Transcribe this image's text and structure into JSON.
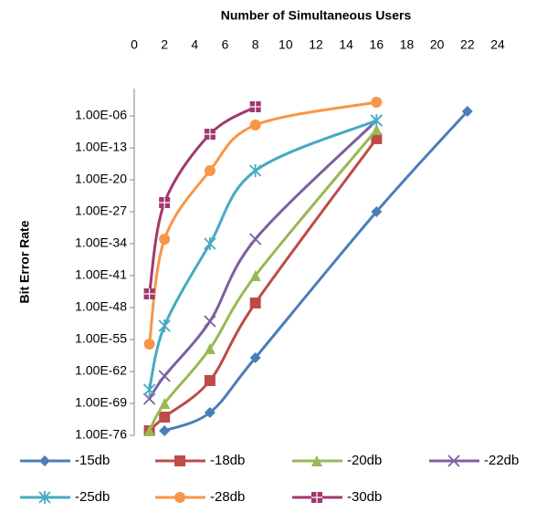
{
  "chart_data": {
    "type": "line",
    "xlabel": "Number of Simultaneous Users",
    "ylabel": "Bit Error Rate",
    "xlim": [
      0,
      24
    ],
    "xticks": [
      0,
      2,
      4,
      6,
      8,
      10,
      12,
      14,
      16,
      18,
      20,
      22,
      24
    ],
    "ylim": [
      1e-76,
      1
    ],
    "log_y": true,
    "yticks": [
      {
        "value": 1e-76,
        "label": "1.00E-76"
      },
      {
        "value": 1e-69,
        "label": "1.00E-69"
      },
      {
        "value": 1e-62,
        "label": "1.00E-62"
      },
      {
        "value": 1e-55,
        "label": "1.00E-55"
      },
      {
        "value": 1e-48,
        "label": "1.00E-48"
      },
      {
        "value": 1e-41,
        "label": "1.00E-41"
      },
      {
        "value": 1e-34,
        "label": "1.00E-34"
      },
      {
        "value": 1e-27,
        "label": "1.00E-27"
      },
      {
        "value": 1e-20,
        "label": "1.00E-20"
      },
      {
        "value": 1e-13,
        "label": "1.00E-13"
      },
      {
        "value": 1e-06,
        "label": "1.00E-06"
      }
    ],
    "legend": "bottom",
    "series": [
      {
        "name": "-15db",
        "color": "#4a7ebb",
        "marker": "diamond",
        "x": [
          2,
          5,
          8,
          16,
          22
        ],
        "values": [
          1e-75,
          1e-71,
          1e-59,
          1e-27,
          1e-05
        ]
      },
      {
        "name": "-18db",
        "color": "#be4b48",
        "marker": "square",
        "x": [
          1,
          2,
          5,
          8,
          16
        ],
        "values": [
          1e-75,
          1e-72,
          1e-64,
          1e-47,
          1e-11
        ]
      },
      {
        "name": "-20db",
        "color": "#98b954",
        "marker": "triangle",
        "x": [
          1,
          2,
          5,
          8,
          16
        ],
        "values": [
          1e-75,
          1e-69,
          1e-57,
          1e-41,
          1e-09
        ]
      },
      {
        "name": "-22db",
        "color": "#7d60a0",
        "marker": "cross",
        "x": [
          1,
          2,
          5,
          8,
          16
        ],
        "values": [
          1e-68,
          1e-63,
          1e-51,
          1e-33,
          1e-07
        ]
      },
      {
        "name": "-25db",
        "color": "#46aac5",
        "marker": "star",
        "x": [
          1,
          2,
          5,
          8,
          16
        ],
        "values": [
          1e-66,
          1e-52,
          1e-34,
          1e-18,
          1e-07
        ]
      },
      {
        "name": "-28db",
        "color": "#f79646",
        "marker": "circle",
        "x": [
          1,
          2,
          5,
          8,
          16
        ],
        "values": [
          1e-56,
          1e-33,
          1e-18,
          1e-08,
          0.001
        ]
      },
      {
        "name": "-30db",
        "color": "#a0386e",
        "marker": "boxplus",
        "x": [
          1,
          2,
          5,
          8
        ],
        "values": [
          1e-45,
          1e-25,
          1e-10,
          0.0001
        ]
      }
    ]
  }
}
